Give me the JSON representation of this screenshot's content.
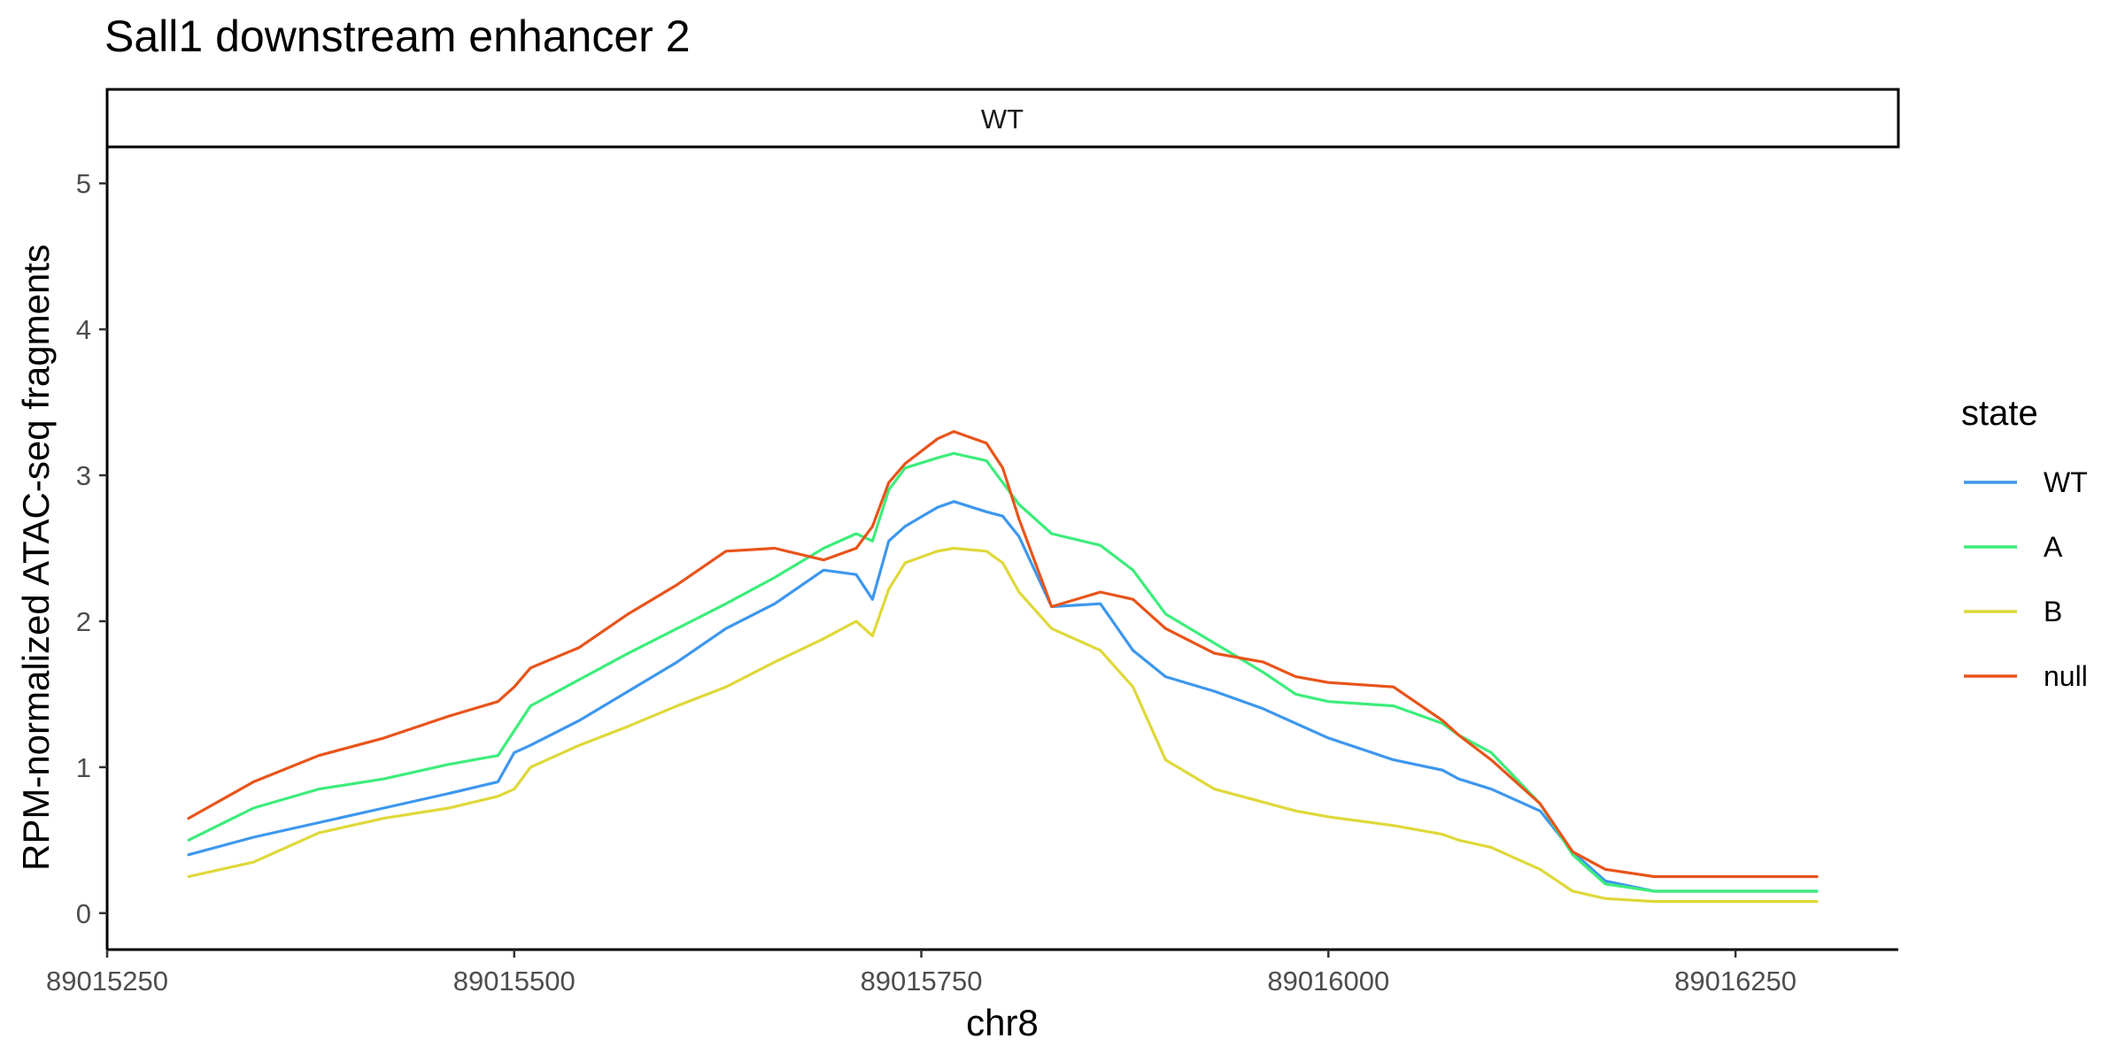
{
  "chart_data": {
    "type": "line",
    "title": "Sall1 downstream enhancer 2",
    "facet_label": "WT",
    "xlabel": "chr8",
    "ylabel": "RPM-normalized ATAC-seq fragments",
    "xlim": [
      89015250,
      89016350
    ],
    "ylim": [
      -0.25,
      5.25
    ],
    "x_ticks": [
      89015250,
      89015500,
      89015750,
      89016000,
      89016250
    ],
    "x_tick_labels": [
      "89015250",
      "89015500",
      "89015750",
      "89016000",
      "89016250"
    ],
    "y_ticks": [
      0,
      1,
      2,
      3,
      4,
      5
    ],
    "y_tick_labels": [
      "0",
      "1",
      "2",
      "3",
      "4",
      "5"
    ],
    "grid": false,
    "legend": {
      "title": "state",
      "position": "right"
    },
    "series": [
      {
        "name": "WT",
        "color": "#3d97ee",
        "x": [
          89015300,
          89015340,
          89015380,
          89015420,
          89015460,
          89015490,
          89015500,
          89015510,
          89015540,
          89015570,
          89015600,
          89015630,
          89015660,
          89015690,
          89015710,
          89015720,
          89015730,
          89015740,
          89015760,
          89015770,
          89015790,
          89015800,
          89015810,
          89015830,
          89015860,
          89015880,
          89015900,
          89015930,
          89015960,
          89015980,
          89016000,
          89016040,
          89016070,
          89016080,
          89016100,
          89016130,
          89016150,
          89016170,
          89016200,
          89016250,
          89016300
        ],
        "y": [
          0.4,
          0.52,
          0.62,
          0.72,
          0.82,
          0.9,
          1.1,
          1.15,
          1.32,
          1.52,
          1.72,
          1.95,
          2.12,
          2.35,
          2.32,
          2.15,
          2.55,
          2.65,
          2.78,
          2.82,
          2.75,
          2.72,
          2.58,
          2.1,
          2.12,
          1.8,
          1.62,
          1.52,
          1.4,
          1.3,
          1.2,
          1.05,
          0.98,
          0.92,
          0.85,
          0.7,
          0.42,
          0.22,
          0.15,
          0.15,
          0.15
        ]
      },
      {
        "name": "A",
        "color": "#3ded7b",
        "x": [
          89015300,
          89015340,
          89015380,
          89015420,
          89015460,
          89015490,
          89015500,
          89015510,
          89015540,
          89015570,
          89015600,
          89015630,
          89015660,
          89015690,
          89015710,
          89015720,
          89015730,
          89015740,
          89015760,
          89015770,
          89015790,
          89015800,
          89015810,
          89015830,
          89015860,
          89015880,
          89015900,
          89015930,
          89015960,
          89015980,
          89016000,
          89016040,
          89016070,
          89016080,
          89016100,
          89016130,
          89016150,
          89016170,
          89016200,
          89016250,
          89016300
        ],
        "y": [
          0.5,
          0.72,
          0.85,
          0.92,
          1.02,
          1.08,
          1.25,
          1.42,
          1.6,
          1.78,
          1.95,
          2.12,
          2.3,
          2.5,
          2.6,
          2.55,
          2.9,
          3.05,
          3.12,
          3.15,
          3.1,
          2.95,
          2.8,
          2.6,
          2.52,
          2.35,
          2.05,
          1.85,
          1.65,
          1.5,
          1.45,
          1.42,
          1.3,
          1.22,
          1.1,
          0.75,
          0.4,
          0.2,
          0.15,
          0.15,
          0.15
        ]
      },
      {
        "name": "B",
        "color": "#dfd83a",
        "x": [
          89015300,
          89015340,
          89015380,
          89015420,
          89015460,
          89015490,
          89015500,
          89015510,
          89015540,
          89015570,
          89015600,
          89015630,
          89015660,
          89015690,
          89015710,
          89015720,
          89015730,
          89015740,
          89015760,
          89015770,
          89015790,
          89015800,
          89015810,
          89015830,
          89015860,
          89015880,
          89015900,
          89015930,
          89015960,
          89015980,
          89016000,
          89016040,
          89016070,
          89016080,
          89016100,
          89016130,
          89016150,
          89016170,
          89016200,
          89016250,
          89016300
        ],
        "y": [
          0.25,
          0.35,
          0.55,
          0.65,
          0.72,
          0.8,
          0.85,
          1.0,
          1.15,
          1.28,
          1.42,
          1.55,
          1.72,
          1.88,
          2.0,
          1.9,
          2.22,
          2.4,
          2.48,
          2.5,
          2.48,
          2.4,
          2.2,
          1.95,
          1.8,
          1.55,
          1.05,
          0.85,
          0.76,
          0.7,
          0.66,
          0.6,
          0.54,
          0.5,
          0.45,
          0.3,
          0.15,
          0.1,
          0.08,
          0.08,
          0.08
        ]
      },
      {
        "name": "null",
        "color": "#e8541a",
        "x": [
          89015300,
          89015340,
          89015380,
          89015420,
          89015460,
          89015490,
          89015500,
          89015510,
          89015540,
          89015570,
          89015600,
          89015630,
          89015660,
          89015690,
          89015710,
          89015720,
          89015730,
          89015740,
          89015760,
          89015770,
          89015790,
          89015800,
          89015810,
          89015830,
          89015860,
          89015880,
          89015900,
          89015930,
          89015960,
          89015980,
          89016000,
          89016040,
          89016070,
          89016080,
          89016100,
          89016130,
          89016150,
          89016170,
          89016200,
          89016250,
          89016300
        ],
        "y": [
          0.65,
          0.9,
          1.08,
          1.2,
          1.35,
          1.45,
          1.55,
          1.68,
          1.82,
          2.05,
          2.25,
          2.48,
          2.5,
          2.42,
          2.5,
          2.65,
          2.95,
          3.08,
          3.25,
          3.3,
          3.22,
          3.05,
          2.7,
          2.1,
          2.2,
          2.15,
          1.95,
          1.78,
          1.72,
          1.62,
          1.58,
          1.55,
          1.32,
          1.22,
          1.05,
          0.75,
          0.42,
          0.3,
          0.25,
          0.25,
          0.25
        ]
      }
    ]
  }
}
